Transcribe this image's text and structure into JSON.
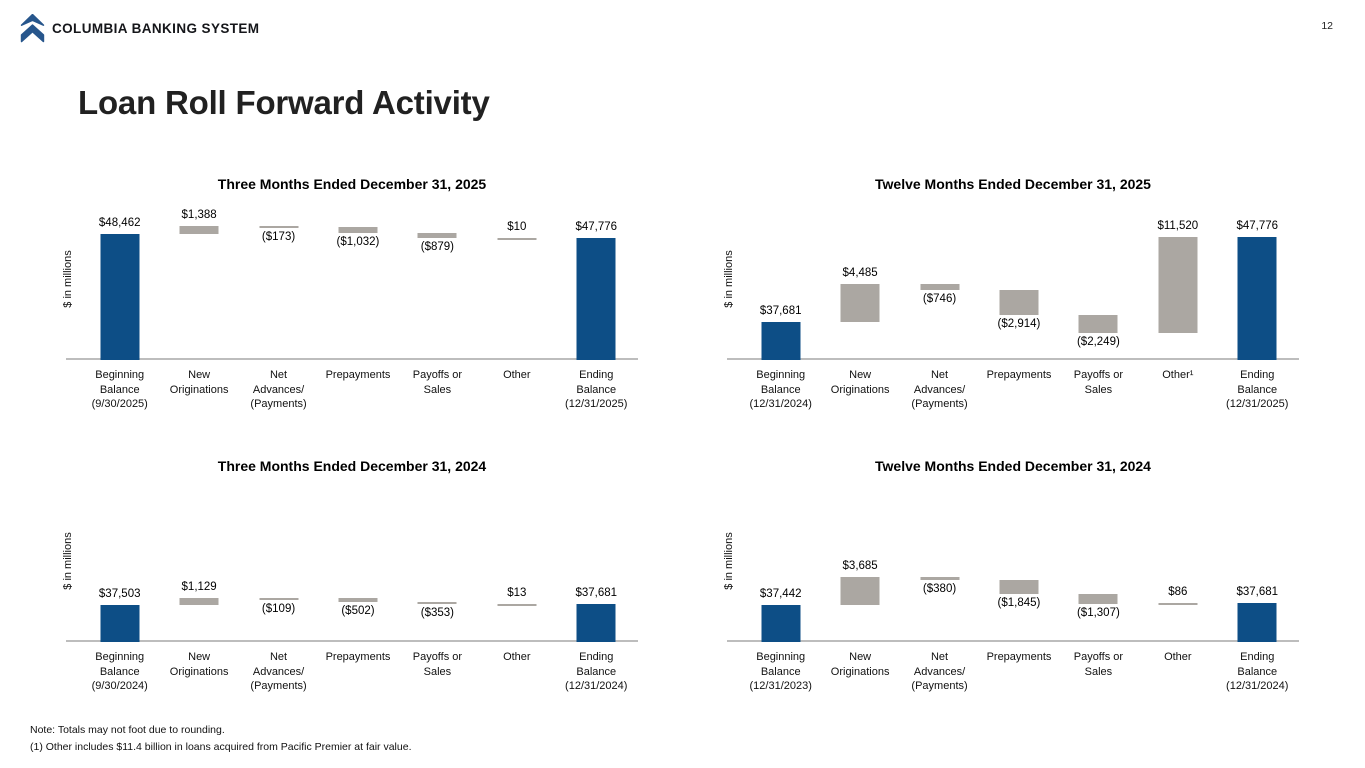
{
  "page": {
    "number": "12"
  },
  "header": {
    "brand": "COLUMBIA BANKING SYSTEM"
  },
  "title": "Loan Roll Forward Activity",
  "colors": {
    "bar_blue": "#0d4e86",
    "bar_gray": "#aba7a2",
    "axis_line": "#bdbdbd",
    "logo_blue": "#27568c"
  },
  "footer": {
    "note1": "Note: Totals may not foot due to rounding.",
    "note2": "(1)  Other includes $11.4 billion in loans acquired from Pacific Premier at fair value."
  },
  "chart_data": [
    {
      "type": "bar",
      "subtype": "waterfall",
      "title": "Three Months Ended December 31, 2025",
      "ylabel": "$ in millions",
      "unit": "USD millions",
      "axis_range": [
        27200,
        54600
      ],
      "grid": false,
      "legend": false,
      "items": [
        {
          "label_lines": [
            "Beginning",
            "Balance",
            "(9/30/2025)"
          ],
          "value": 48462,
          "display": "$48,462",
          "kind": "total"
        },
        {
          "label_lines": [
            "New",
            "Originations"
          ],
          "value": 1388,
          "display": "$1,388",
          "kind": "delta"
        },
        {
          "label_lines": [
            "Net",
            "Advances/",
            "(Payments)"
          ],
          "value": -173,
          "display": "($173)",
          "kind": "delta"
        },
        {
          "label_lines": [
            "Prepayments"
          ],
          "value": -1032,
          "display": "($1,032)",
          "kind": "delta"
        },
        {
          "label_lines": [
            "Payoffs or",
            "Sales"
          ],
          "value": -879,
          "display": "($879)",
          "kind": "delta"
        },
        {
          "label_lines": [
            "Other"
          ],
          "value": 10,
          "display": "$10",
          "kind": "delta"
        },
        {
          "label_lines": [
            "Ending",
            "Balance",
            "(12/31/2025)"
          ],
          "value": 47776,
          "display": "$47,776",
          "kind": "total"
        }
      ]
    },
    {
      "type": "bar",
      "subtype": "waterfall",
      "title": "Twelve Months Ended December 31, 2025",
      "ylabel": "$ in millions",
      "unit": "USD millions",
      "axis_range": [
        33080,
        52440
      ],
      "grid": false,
      "legend": false,
      "items": [
        {
          "label_lines": [
            "Beginning",
            "Balance",
            "(12/31/2024)"
          ],
          "value": 37681,
          "display": "$37,681",
          "kind": "total"
        },
        {
          "label_lines": [
            "New",
            "Originations"
          ],
          "value": 4485,
          "display": "$4,485",
          "kind": "delta"
        },
        {
          "label_lines": [
            "Net",
            "Advances/",
            "(Payments)"
          ],
          "value": -746,
          "display": "($746)",
          "kind": "delta"
        },
        {
          "label_lines": [
            "Prepayments"
          ],
          "value": -2914,
          "display": "($2,914)",
          "kind": "delta"
        },
        {
          "label_lines": [
            "Payoffs or",
            "Sales"
          ],
          "value": -2249,
          "display": "($2,249)",
          "kind": "delta"
        },
        {
          "label_lines": [
            "Other¹"
          ],
          "value": 11520,
          "display": "$11,520",
          "kind": "delta"
        },
        {
          "label_lines": [
            "Ending",
            "Balance",
            "(12/31/2025)"
          ],
          "value": 47776,
          "display": "$47,776",
          "kind": "total"
        }
      ]
    },
    {
      "type": "bar",
      "subtype": "waterfall",
      "title": "Three Months Ended December 31, 2024",
      "ylabel": "$ in millions",
      "unit": "USD millions",
      "axis_range": [
        31550,
        57470
      ],
      "grid": false,
      "legend": false,
      "items": [
        {
          "label_lines": [
            "Beginning",
            "Balance",
            "(9/30/2024)"
          ],
          "value": 37503,
          "display": "$37,503",
          "kind": "total"
        },
        {
          "label_lines": [
            "New",
            "Originations"
          ],
          "value": 1129,
          "display": "$1,129",
          "kind": "delta"
        },
        {
          "label_lines": [
            "Net",
            "Advances/",
            "(Payments)"
          ],
          "value": -109,
          "display": "($109)",
          "kind": "delta"
        },
        {
          "label_lines": [
            "Prepayments"
          ],
          "value": -502,
          "display": "($502)",
          "kind": "delta"
        },
        {
          "label_lines": [
            "Payoffs or",
            "Sales"
          ],
          "value": -353,
          "display": "($353)",
          "kind": "delta"
        },
        {
          "label_lines": [
            "Other"
          ],
          "value": 13,
          "display": "$13",
          "kind": "delta"
        },
        {
          "label_lines": [
            "Ending",
            "Balance",
            "(12/31/2024)"
          ],
          "value": 37681,
          "display": "$37,681",
          "kind": "total"
        }
      ]
    },
    {
      "type": "bar",
      "subtype": "waterfall",
      "title": "Twelve Months Ended December 31, 2024",
      "ylabel": "$ in millions",
      "unit": "USD millions",
      "axis_range": [
        32740,
        53500
      ],
      "grid": false,
      "legend": false,
      "items": [
        {
          "label_lines": [
            "Beginning",
            "Balance",
            "(12/31/2023)"
          ],
          "value": 37442,
          "display": "$37,442",
          "kind": "total"
        },
        {
          "label_lines": [
            "New",
            "Originations"
          ],
          "value": 3685,
          "display": "$3,685",
          "kind": "delta"
        },
        {
          "label_lines": [
            "Net",
            "Advances/",
            "(Payments)"
          ],
          "value": -380,
          "display": "($380)",
          "kind": "delta"
        },
        {
          "label_lines": [
            "Prepayments"
          ],
          "value": -1845,
          "display": "($1,845)",
          "kind": "delta"
        },
        {
          "label_lines": [
            "Payoffs or",
            "Sales"
          ],
          "value": -1307,
          "display": "($1,307)",
          "kind": "delta"
        },
        {
          "label_lines": [
            "Other"
          ],
          "value": 86,
          "display": "$86",
          "kind": "delta"
        },
        {
          "label_lines": [
            "Ending",
            "Balance",
            "(12/31/2024)"
          ],
          "value": 37681,
          "display": "$37,681",
          "kind": "total"
        }
      ]
    }
  ]
}
